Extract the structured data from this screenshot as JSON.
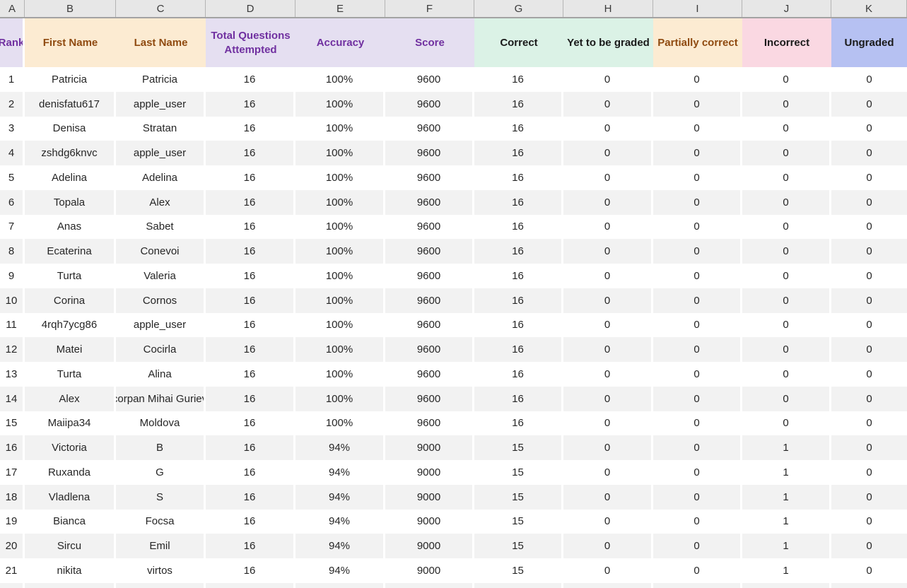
{
  "spreadsheet": {
    "column_letters": [
      "A",
      "B",
      "C",
      "D",
      "E",
      "F",
      "G",
      "H",
      "I",
      "J",
      "K"
    ],
    "columns": [
      {
        "key": "rank",
        "label": "Rank",
        "style": "lavender"
      },
      {
        "key": "first-name",
        "label": "First Name",
        "style": "peach"
      },
      {
        "key": "last-name",
        "label": "Last Name",
        "style": "peach"
      },
      {
        "key": "total-questions-attempted",
        "label": "Total Questions Attempted",
        "style": "lavender"
      },
      {
        "key": "accuracy",
        "label": "Accuracy",
        "style": "lavender"
      },
      {
        "key": "score",
        "label": "Score",
        "style": "lavender"
      },
      {
        "key": "correct",
        "label": "Correct",
        "style": "mint"
      },
      {
        "key": "yet-to-be-graded",
        "label": "Yet to be graded",
        "style": "mint"
      },
      {
        "key": "partially-correct",
        "label": "Partially correct",
        "style": "peach"
      },
      {
        "key": "incorrect",
        "label": "Incorrect",
        "style": "pink"
      },
      {
        "key": "ungraded",
        "label": "Ungraded",
        "style": "blue"
      }
    ],
    "rows": [
      [
        "1",
        "Patricia",
        "Patricia",
        "16",
        "100%",
        "9600",
        "16",
        "0",
        "0",
        "0",
        "0"
      ],
      [
        "2",
        "denisfatu617",
        "apple_user",
        "16",
        "100%",
        "9600",
        "16",
        "0",
        "0",
        "0",
        "0"
      ],
      [
        "3",
        "Denisa",
        "Stratan",
        "16",
        "100%",
        "9600",
        "16",
        "0",
        "0",
        "0",
        "0"
      ],
      [
        "4",
        "zshdg6knvc",
        "apple_user",
        "16",
        "100%",
        "9600",
        "16",
        "0",
        "0",
        "0",
        "0"
      ],
      [
        "5",
        "Adelina",
        "Adelina",
        "16",
        "100%",
        "9600",
        "16",
        "0",
        "0",
        "0",
        "0"
      ],
      [
        "6",
        "Topala",
        "Alex",
        "16",
        "100%",
        "9600",
        "16",
        "0",
        "0",
        "0",
        "0"
      ],
      [
        "7",
        "Anas",
        "Sabet",
        "16",
        "100%",
        "9600",
        "16",
        "0",
        "0",
        "0",
        "0"
      ],
      [
        "8",
        "Ecaterina",
        "Conevoi",
        "16",
        "100%",
        "9600",
        "16",
        "0",
        "0",
        "0",
        "0"
      ],
      [
        "9",
        "Turta",
        "Valeria",
        "16",
        "100%",
        "9600",
        "16",
        "0",
        "0",
        "0",
        "0"
      ],
      [
        "10",
        "Corina",
        "Cornos",
        "16",
        "100%",
        "9600",
        "16",
        "0",
        "0",
        "0",
        "0"
      ],
      [
        "11",
        "4rqh7ycg86",
        "apple_user",
        "16",
        "100%",
        "9600",
        "16",
        "0",
        "0",
        "0",
        "0"
      ],
      [
        "12",
        "Matei",
        "Cocirla",
        "16",
        "100%",
        "9600",
        "16",
        "0",
        "0",
        "0",
        "0"
      ],
      [
        "13",
        "Turta",
        "Alina",
        "16",
        "100%",
        "9600",
        "16",
        "0",
        "0",
        "0",
        "0"
      ],
      [
        "14",
        "Alex",
        "corpan Mihai Guriev",
        "16",
        "100%",
        "9600",
        "16",
        "0",
        "0",
        "0",
        "0"
      ],
      [
        "15",
        "Maiipa34",
        "Moldova",
        "16",
        "100%",
        "9600",
        "16",
        "0",
        "0",
        "0",
        "0"
      ],
      [
        "16",
        "Victoria",
        "B",
        "16",
        "94%",
        "9000",
        "15",
        "0",
        "0",
        "1",
        "0"
      ],
      [
        "17",
        "Ruxanda",
        "G",
        "16",
        "94%",
        "9000",
        "15",
        "0",
        "0",
        "1",
        "0"
      ],
      [
        "18",
        "Vladlena",
        "S",
        "16",
        "94%",
        "9000",
        "15",
        "0",
        "0",
        "1",
        "0"
      ],
      [
        "19",
        "Bianca",
        "Focsa",
        "16",
        "94%",
        "9000",
        "15",
        "0",
        "0",
        "1",
        "0"
      ],
      [
        "20",
        "Sircu",
        "Emil",
        "16",
        "94%",
        "9000",
        "15",
        "0",
        "0",
        "1",
        "0"
      ],
      [
        "21",
        "nikita",
        "virtos",
        "16",
        "94%",
        "9000",
        "15",
        "0",
        "0",
        "1",
        "0"
      ]
    ],
    "has_partial_bottom_row": true
  },
  "palette": {
    "lavender_bg": "#E5DFF1",
    "peach_bg": "#FCEBD2",
    "mint_bg": "#DBF2E6",
    "pink_bg": "#FAD8E2",
    "blue_bg": "#B6C1F2",
    "purple_text": "#7030A0",
    "brown_text": "#8F4A10",
    "black_text": "#1A1A1A",
    "stripe_bg": "#F2F2F2",
    "letter_row_bg": "#E7E7E7",
    "data_text": "#262626"
  }
}
